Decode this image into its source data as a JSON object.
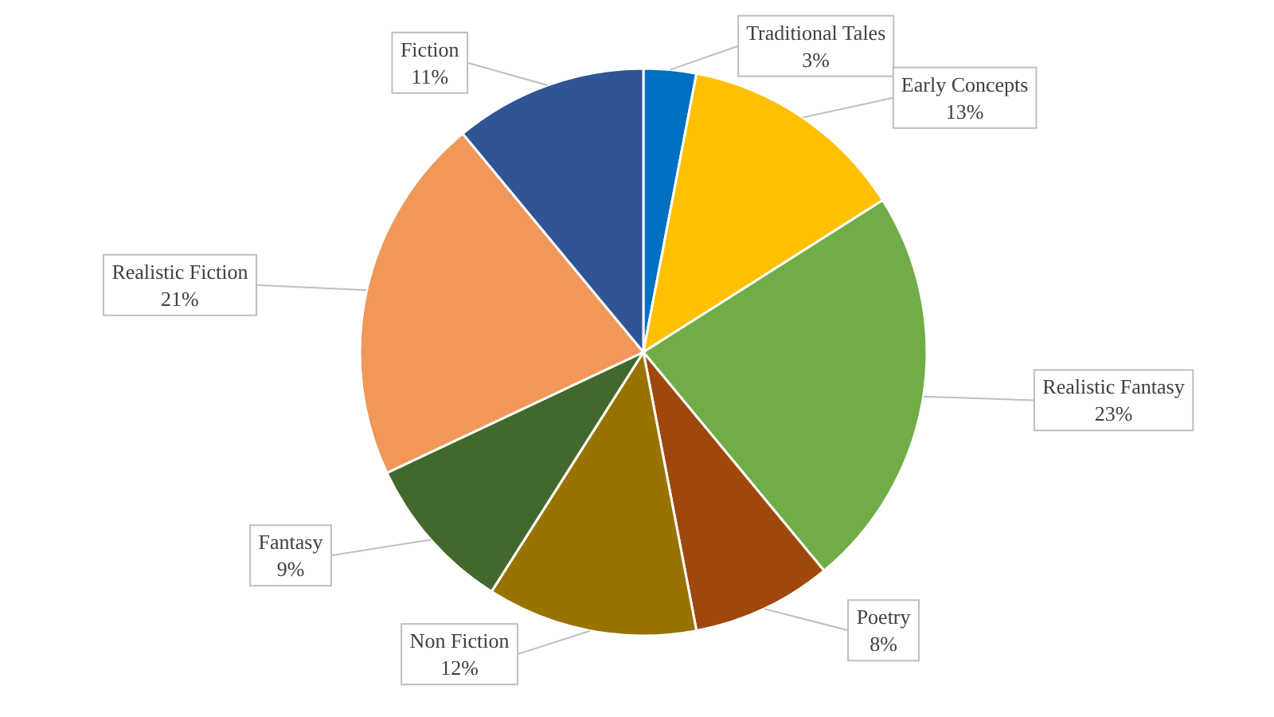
{
  "chart_data": {
    "type": "pie",
    "categories": [
      "Traditional Tales",
      "Early Concepts",
      "Realistic Fantasy",
      "Poetry",
      "Non Fiction",
      "Fantasy",
      "Realistic Fiction",
      "Fiction"
    ],
    "values": [
      3,
      13,
      23,
      8,
      12,
      9,
      21,
      11
    ],
    "value_labels": [
      "3%",
      "13%",
      "23%",
      "8%",
      "12%",
      "9%",
      "21%",
      "11%"
    ],
    "colors": [
      "#0070c0",
      "#ffc000",
      "#70ad47",
      "#9e480e",
      "#997300",
      "#43682b",
      "#f1975a",
      "#2f5597"
    ]
  }
}
